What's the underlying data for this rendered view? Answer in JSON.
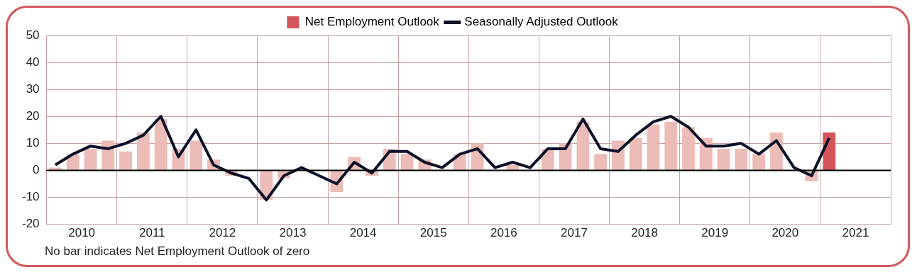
{
  "chart_data": {
    "type": "bar",
    "x": [
      2010.125,
      2010.375,
      2010.625,
      2010.875,
      2011.125,
      2011.375,
      2011.625,
      2011.875,
      2012.125,
      2012.375,
      2012.625,
      2012.875,
      2013.125,
      2013.375,
      2013.625,
      2013.875,
      2014.125,
      2014.375,
      2014.625,
      2014.875,
      2015.125,
      2015.375,
      2015.625,
      2015.875,
      2016.125,
      2016.375,
      2016.625,
      2016.875,
      2017.125,
      2017.375,
      2017.625,
      2017.875,
      2018.125,
      2018.375,
      2018.625,
      2018.875,
      2019.125,
      2019.375,
      2019.625,
      2019.875,
      2020.125,
      2020.375,
      2020.625,
      2020.875,
      2021.125
    ],
    "series": [
      {
        "name": "Net Employment Outlook",
        "color": "#d4565a",
        "colors": [
          "#ebbcb8",
          "#ebbcb8",
          "#ebbcb8",
          "#ebbcb8",
          "#ebbcb8",
          "#ebbcb8",
          "#ebbcb8",
          "#ebbcb8",
          "#ebbcb8",
          "#ebbcb8",
          "#ebbcb8",
          "#ebbcb8",
          "#ebbcb8",
          "#ebbcb8",
          "#ebbcb8",
          "#ebbcb8",
          "#ebbcb8",
          "#ebbcb8",
          "#ebbcb8",
          "#ebbcb8",
          "#ebbcb8",
          "#ebbcb8",
          "#ebbcb8",
          "#ebbcb8",
          "#ebbcb8",
          "#ebbcb8",
          "#ebbcb8",
          "#ebbcb8",
          "#ebbcb8",
          "#ebbcb8",
          "#ebbcb8",
          "#ebbcb8",
          "#ebbcb8",
          "#ebbcb8",
          "#ebbcb8",
          "#ebbcb8",
          "#ebbcb8",
          "#ebbcb8",
          "#ebbcb8",
          "#ebbcb8",
          "#ebbcb8",
          "#ebbcb8",
          "#ebbcb8",
          "#ebbcb8",
          "#d4565a"
        ],
        "values": [
          1,
          6,
          8,
          11,
          7,
          14,
          19,
          8,
          11,
          4,
          -2,
          0,
          -11,
          -3,
          0,
          0,
          -8,
          5,
          -2,
          8,
          6,
          4,
          0,
          6,
          10,
          0,
          2,
          0,
          8,
          10,
          18,
          6,
          11,
          12,
          17,
          18,
          16,
          12,
          8,
          8,
          6,
          14,
          0,
          -4,
          14
        ]
      },
      {
        "name": "Seasonally Adjusted Outlook",
        "type": "line",
        "color": "#0d1128",
        "values": [
          2,
          6,
          9,
          8,
          10,
          13,
          20,
          5,
          15,
          2,
          -1,
          -3,
          -11,
          -2,
          1,
          -2,
          -5,
          3,
          -1,
          7,
          7,
          3,
          1,
          6,
          8,
          1,
          3,
          1,
          8,
          8,
          19,
          8,
          7,
          13,
          18,
          20,
          16,
          9,
          9,
          10,
          6,
          11,
          1,
          -2,
          12
        ]
      }
    ],
    "xlim": [
      2010,
      2022
    ],
    "xticks": [
      {
        "value": 2010.5,
        "label": "2010"
      },
      {
        "value": 2011,
        "label": null
      },
      {
        "value": 2011.5,
        "label": "2011"
      },
      {
        "value": 2012,
        "label": null
      },
      {
        "value": 2012.5,
        "label": "2012"
      },
      {
        "value": 2013,
        "label": null
      },
      {
        "value": 2013.5,
        "label": "2013"
      },
      {
        "value": 2014,
        "label": null
      },
      {
        "value": 2014.5,
        "label": "2014"
      },
      {
        "value": 2015,
        "label": null
      },
      {
        "value": 2015.5,
        "label": "2015"
      },
      {
        "value": 2016,
        "label": null
      },
      {
        "value": 2016.5,
        "label": "2016"
      },
      {
        "value": 2017,
        "label": null
      },
      {
        "value": 2017.5,
        "label": "2017"
      },
      {
        "value": 2018,
        "label": null
      },
      {
        "value": 2018.5,
        "label": "2018"
      },
      {
        "value": 2019,
        "label": null
      },
      {
        "value": 2019.5,
        "label": "2019"
      },
      {
        "value": 2020,
        "label": null
      },
      {
        "value": 2020.5,
        "label": "2020"
      },
      {
        "value": 2021,
        "label": null
      },
      {
        "value": 2021.5,
        "label": "2021"
      },
      {
        "value": 2022,
        "label": null
      }
    ],
    "ylim": [
      -20,
      50
    ],
    "yticks": [
      -20,
      -10,
      0,
      10,
      20,
      30,
      40,
      50
    ],
    "grid": true,
    "legend": "top",
    "ref_lines": [
      {
        "axis": "y",
        "value": 0,
        "color": "#000000"
      }
    ],
    "annotations": [
      "No bar indicates Net Employment Outlook of zero"
    ]
  }
}
